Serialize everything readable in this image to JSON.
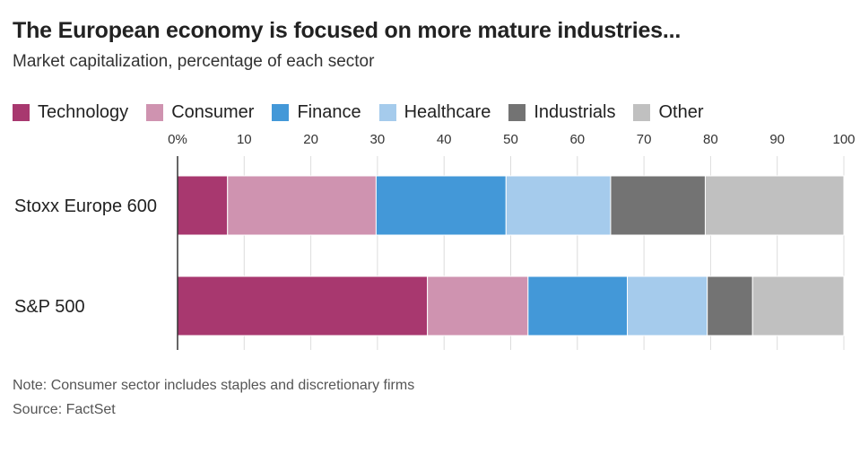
{
  "header": {
    "title": "The European economy is focused on more mature industries...",
    "subtitle": "Market capitalization, percentage of each sector"
  },
  "footer": {
    "note": "Note: Consumer sector includes staples and discretionary firms",
    "source": "Source: FactSet"
  },
  "chart_data": {
    "type": "bar",
    "orientation": "horizontal",
    "stacked": true,
    "title": "The European economy is focused on more mature industries...",
    "subtitle": "Market capitalization, percentage of each sector",
    "categories": [
      "Stoxx Europe 600",
      "S&P 500"
    ],
    "series": [
      {
        "name": "Technology",
        "color": "#a8386f",
        "values": [
          7.5,
          37.5
        ]
      },
      {
        "name": "Consumer",
        "color": "#cf93b0",
        "values": [
          22.3,
          15.1
        ]
      },
      {
        "name": "Finance",
        "color": "#4398d8",
        "values": [
          19.5,
          14.9
        ]
      },
      {
        "name": "Healthcare",
        "color": "#a5cbec",
        "values": [
          15.7,
          12.0
        ]
      },
      {
        "name": "Industrials",
        "color": "#737373",
        "values": [
          14.2,
          6.8
        ]
      },
      {
        "name": "Other",
        "color": "#c0c0c0",
        "values": [
          20.8,
          13.7
        ]
      }
    ],
    "xticks": [
      "0%",
      "10",
      "20",
      "30",
      "40",
      "50",
      "60",
      "70",
      "80",
      "90",
      "100"
    ],
    "xlim": [
      0,
      100
    ],
    "grid": true,
    "legend_position": "top-left"
  }
}
